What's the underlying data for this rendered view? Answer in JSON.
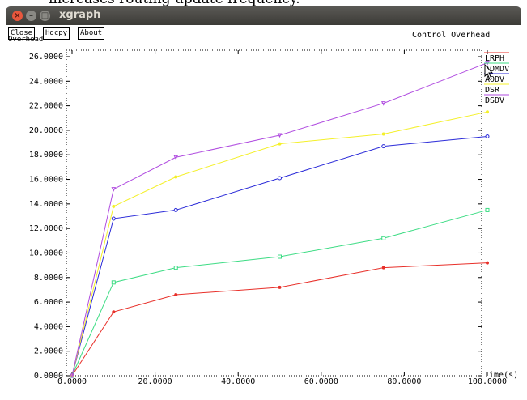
{
  "caption_fragment": "increases routing update frequency.",
  "window": {
    "title": "xgraph",
    "buttons": [
      {
        "name": "close",
        "label": "Close"
      },
      {
        "name": "hdcpy",
        "label": "Hdcpy"
      },
      {
        "name": "about",
        "label": "About"
      }
    ]
  },
  "colors": {
    "LRPH": "#e8302a",
    "AOMDV": "#3ddc84",
    "AODV": "#2a2ad8",
    "DSR": "#f4f02a",
    "DSDV": "#b04ce0"
  },
  "chart_data": {
    "type": "line",
    "title": "Control Overhead",
    "ylabel": "Overhead",
    "xlabel": "Time(s)",
    "xlim": [
      0,
      100
    ],
    "ylim": [
      0,
      26
    ],
    "x_ticks": [
      "0.0000",
      "20.0000",
      "40.0000",
      "60.0000",
      "80.0000",
      "100.0000"
    ],
    "x_tick_values": [
      0,
      20,
      40,
      60,
      80,
      100
    ],
    "y_ticks": [
      "0.0000",
      "2.0000",
      "4.0000",
      "6.0000",
      "8.0000",
      "10.0000",
      "12.0000",
      "14.0000",
      "16.0000",
      "18.0000",
      "20.0000",
      "22.0000",
      "24.0000",
      "26.0000"
    ],
    "y_tick_values": [
      0,
      2,
      4,
      6,
      8,
      10,
      12,
      14,
      16,
      18,
      20,
      22,
      24,
      26
    ],
    "grid": false,
    "legend_position": "top-right",
    "series": [
      {
        "name": "LRPH",
        "x": [
          0,
          10,
          25,
          50,
          75,
          100
        ],
        "y": [
          0,
          5.2,
          6.6,
          7.2,
          8.8,
          9.2
        ]
      },
      {
        "name": "AOMDV",
        "x": [
          0,
          10,
          25,
          50,
          75,
          100
        ],
        "y": [
          0,
          7.6,
          8.8,
          9.7,
          11.2,
          13.5
        ]
      },
      {
        "name": "AODV",
        "x": [
          0,
          10,
          25,
          50,
          75,
          100
        ],
        "y": [
          0,
          12.8,
          13.5,
          16.1,
          18.7,
          19.5
        ]
      },
      {
        "name": "DSR",
        "x": [
          0,
          10,
          25,
          50,
          75,
          100
        ],
        "y": [
          0,
          13.8,
          16.2,
          18.9,
          19.7,
          21.5
        ]
      },
      {
        "name": "DSDV",
        "x": [
          0,
          10,
          25,
          50,
          75,
          100
        ],
        "y": [
          0,
          15.2,
          17.8,
          19.6,
          22.2,
          25.5
        ]
      }
    ]
  }
}
